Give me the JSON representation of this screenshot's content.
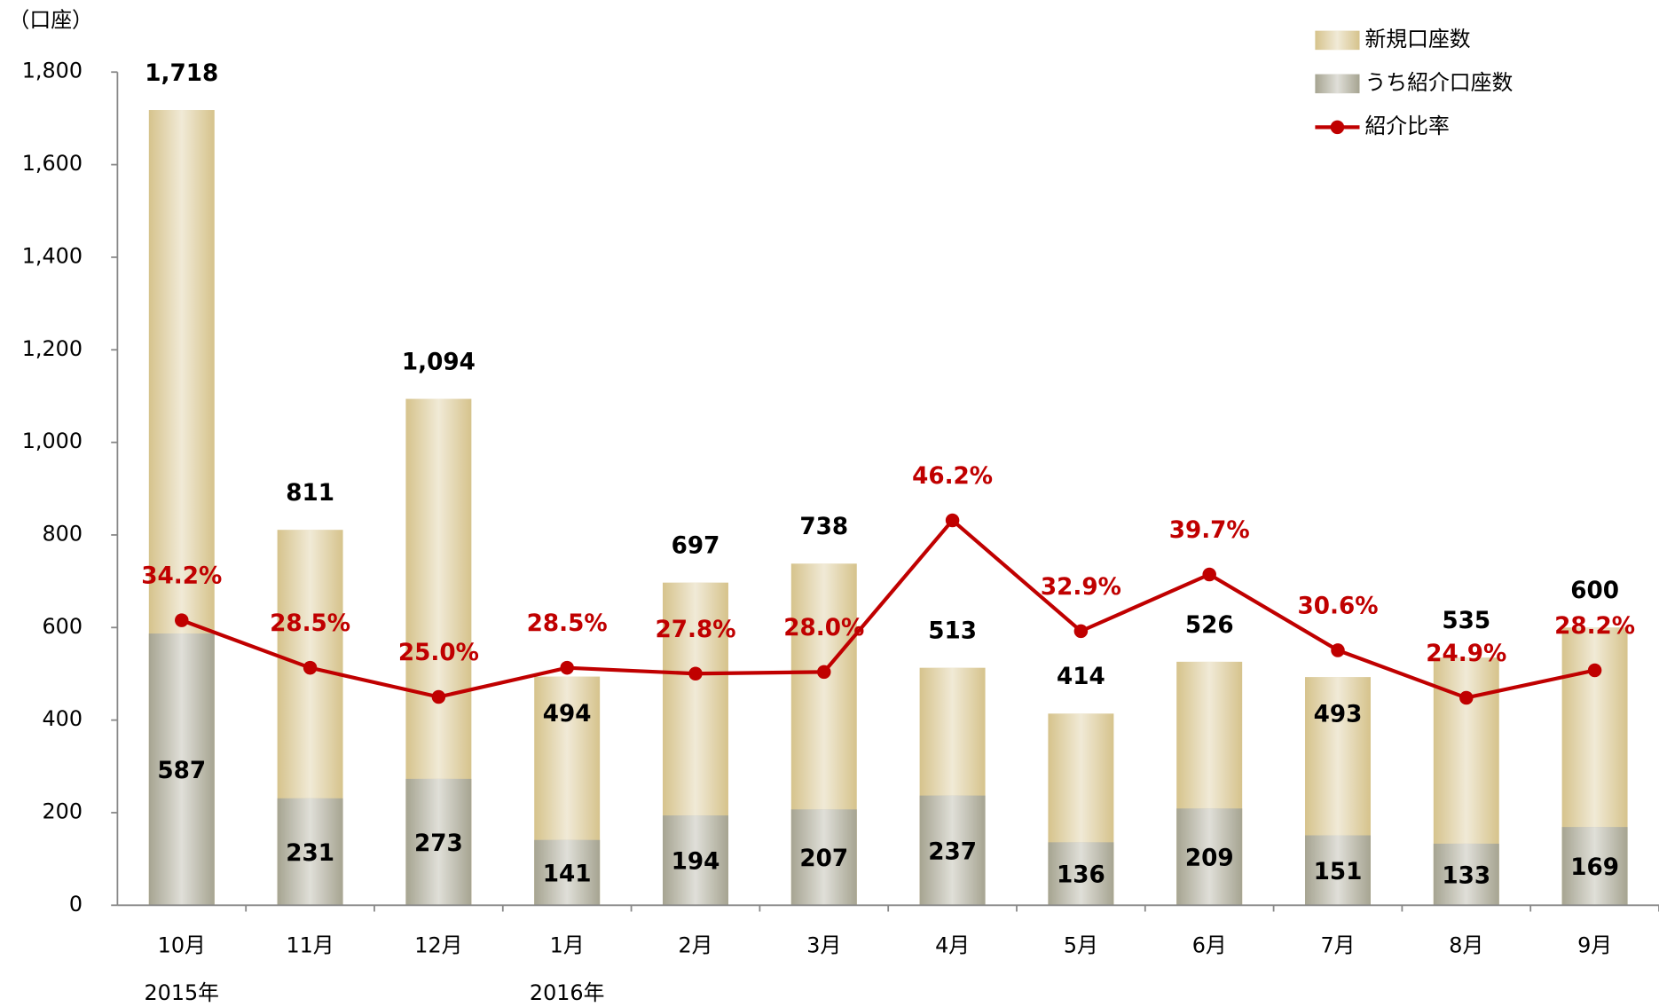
{
  "chart_data": {
    "type": "bar",
    "y_axis_label": "（口座）",
    "categories": [
      "10月",
      "11月",
      "12月",
      "1月",
      "2月",
      "3月",
      "4月",
      "5月",
      "6月",
      "7月",
      "8月",
      "9月"
    ],
    "x_group_labels": [
      "2015年",
      null,
      null,
      "2016年",
      null,
      null,
      null,
      null,
      null,
      null,
      null,
      null
    ],
    "series": [
      {
        "name": "新規口座数",
        "type": "bar",
        "color": "#d6c38c",
        "values": [
          1718,
          811,
          1094,
          494,
          697,
          738,
          513,
          414,
          526,
          493,
          535,
          600
        ],
        "value_labels": [
          "1,718",
          "811",
          "1,094",
          "494",
          "697",
          "738",
          "513",
          "414",
          "526",
          "493",
          "535",
          "600"
        ]
      },
      {
        "name": "うち紹介口座数",
        "type": "bar",
        "color": "#a6a491",
        "values": [
          587,
          231,
          273,
          141,
          194,
          207,
          237,
          136,
          209,
          151,
          133,
          169
        ]
      },
      {
        "name": "紹介比率",
        "type": "line",
        "color": "#c00000",
        "axis": "y2",
        "values": [
          34.2,
          28.5,
          25.0,
          28.5,
          27.8,
          28.0,
          46.2,
          32.9,
          39.7,
          30.6,
          24.9,
          28.2
        ],
        "value_labels": [
          "34.2%",
          "28.5%",
          "25.0%",
          "28.5%",
          "27.8%",
          "28.0%",
          "46.2%",
          "32.9%",
          "39.7%",
          "30.6%",
          "24.9%",
          "28.2%"
        ]
      }
    ],
    "ylim": [
      0,
      1800
    ],
    "yticks": [
      0,
      200,
      400,
      600,
      800,
      {
        "value": 1000,
        "label": "1,000"
      },
      {
        "value": 1200,
        "label": "1,200"
      },
      {
        "value": 1400,
        "label": "1,400"
      },
      {
        "value": 1600,
        "label": "1,600"
      },
      {
        "value": 1800,
        "label": "1,800"
      }
    ],
    "y2lim": [
      0,
      100
    ],
    "legend": "top-right"
  }
}
